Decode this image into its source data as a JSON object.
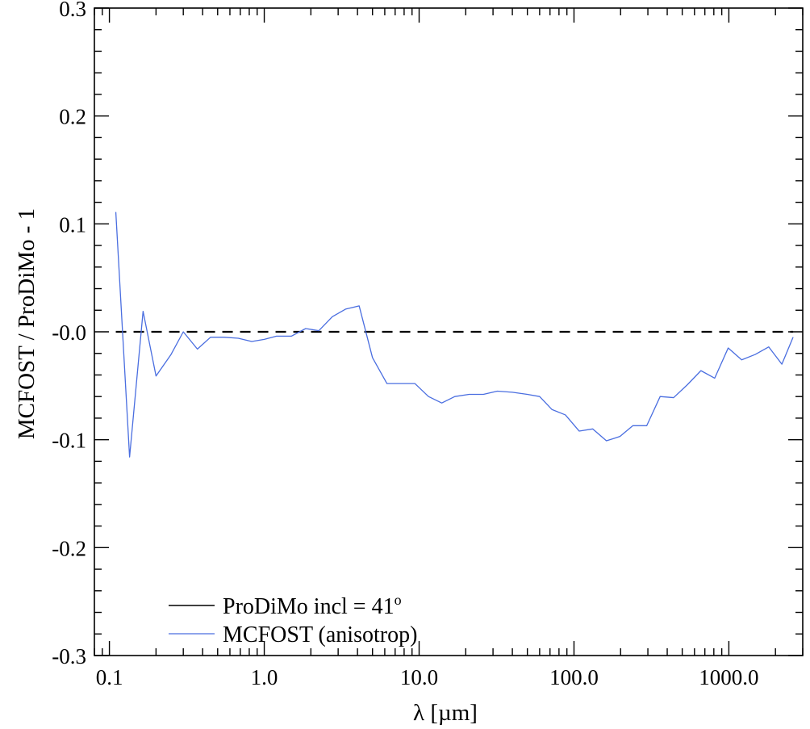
{
  "chart_data": {
    "type": "line",
    "xscale": "log",
    "xlim": [
      0.08,
      3000
    ],
    "ylim": [
      -0.3,
      0.3
    ],
    "xlabel": "λ [µm]",
    "ylabel": "MCFOST / ProDiMo - 1",
    "xticks": [
      0.1,
      1.0,
      10.0,
      100.0,
      1000.0
    ],
    "xtick_labels": [
      "0.1",
      "1.0",
      "10.0",
      "100.0",
      "1000.0"
    ],
    "yticks": [
      0.3,
      0.2,
      0.1,
      0.0,
      -0.1,
      -0.2,
      -0.3
    ],
    "ytick_labels": [
      "0.3",
      "0.2",
      "0.1",
      "-0.0",
      "-0.1",
      "-0.2",
      "-0.3"
    ],
    "grid": false,
    "legend_position": "bottom-left",
    "series": [
      {
        "name": "ProDiMo incl = 41",
        "name_superscript": "o",
        "color": "#000000",
        "style": "dashed",
        "x": [
          0.11,
          2600
        ],
        "y": [
          0.0,
          0.0
        ]
      },
      {
        "name": "MCFOST (anisotrop)",
        "color": "#4a6ee0",
        "style": "solid",
        "x": [
          0.11,
          0.135,
          0.165,
          0.2,
          0.25,
          0.3,
          0.37,
          0.45,
          0.55,
          0.68,
          0.83,
          1.0,
          1.2,
          1.5,
          1.85,
          2.25,
          2.75,
          3.35,
          4.1,
          5.0,
          6.2,
          7.6,
          9.4,
          11.5,
          14.0,
          17.0,
          21.0,
          26.0,
          32.0,
          40.0,
          50.0,
          60.0,
          72.0,
          88.0,
          108.0,
          132.0,
          162.0,
          198.0,
          240.0,
          295.0,
          360.0,
          440.0,
          540.0,
          660.0,
          810.0,
          990.0,
          1210.0,
          1480.0,
          1810.0,
          2200.0,
          2600.0
        ],
        "y": [
          0.111,
          -0.116,
          0.019,
          -0.041,
          -0.021,
          0.0,
          -0.016,
          -0.005,
          -0.005,
          -0.006,
          -0.009,
          -0.007,
          -0.004,
          -0.004,
          0.003,
          0.001,
          0.014,
          0.021,
          0.024,
          -0.024,
          -0.048,
          -0.048,
          -0.048,
          -0.06,
          -0.066,
          -0.06,
          -0.058,
          -0.058,
          -0.055,
          -0.056,
          -0.058,
          -0.06,
          -0.072,
          -0.077,
          -0.092,
          -0.09,
          -0.101,
          -0.097,
          -0.087,
          -0.087,
          -0.06,
          -0.061,
          -0.049,
          -0.036,
          -0.043,
          -0.015,
          -0.026,
          -0.021,
          -0.014,
          -0.03,
          -0.005
        ]
      }
    ]
  }
}
